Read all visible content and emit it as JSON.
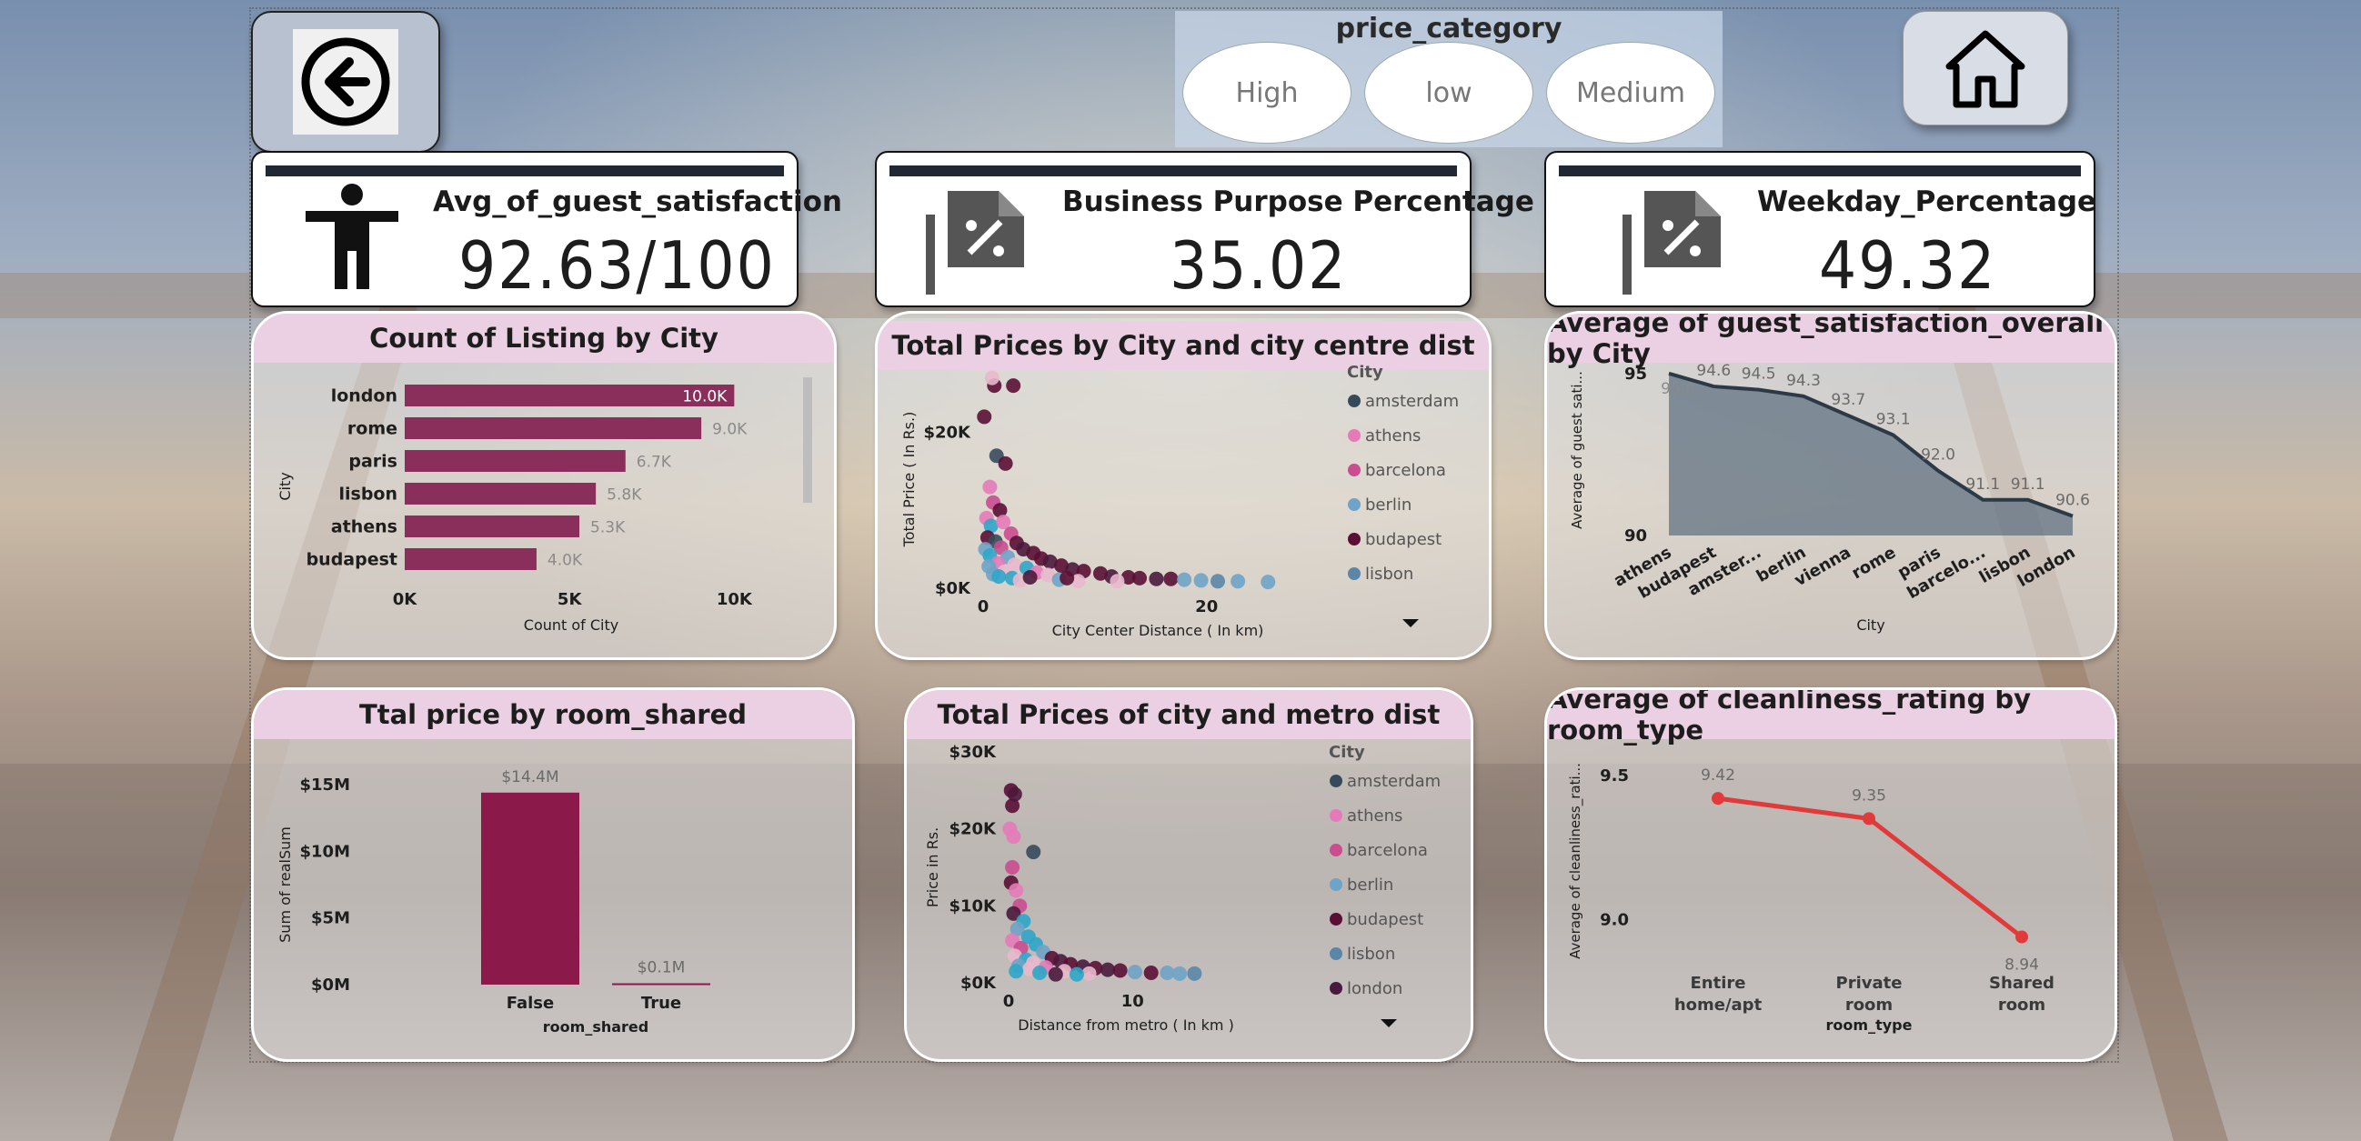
{
  "nav": {
    "back_icon": "arrow-left-circle-icon",
    "home_icon": "home-icon"
  },
  "slicer": {
    "title": "price_category",
    "options": [
      "High",
      "low",
      "Medium"
    ]
  },
  "kpis": [
    {
      "title": "Avg_of_guest_satisfaction",
      "value": "92.63/100",
      "icon": "person-icon"
    },
    {
      "title": "Business Purpose Percentage",
      "value": "35.02",
      "icon": "percent-document-icon"
    },
    {
      "title": "Weekday_Percentage",
      "value": "49.32",
      "icon": "percent-document-icon"
    }
  ],
  "colors": {
    "bar": "#8a2f5b",
    "bar_dark": "#8b1a4a",
    "line_red": "#e03a3a",
    "area": "#5d6f80",
    "amsterdam": "#374a5c",
    "athens": "#e57ab8",
    "barcelona": "#c94d8f",
    "berlin": "#6fa3c7",
    "budapest": "#5a1035",
    "lisbon": "#5b86a8",
    "london": "#4a1a3d",
    "paris": "#e8b9cc",
    "rome": "#2ea6c8"
  },
  "chart_data": [
    {
      "type": "bar",
      "title": "Count of Listing by City",
      "orientation": "horizontal",
      "categories": [
        "london",
        "rome",
        "paris",
        "lisbon",
        "athens",
        "budapest"
      ],
      "values": [
        10000,
        9000,
        6700,
        5800,
        5300,
        4000
      ],
      "labels": [
        "10.0K",
        "9.0K",
        "6.7K",
        "5.8K",
        "5.3K",
        "4.0K"
      ],
      "xlabel": "Count of City",
      "ylabel": "City",
      "xticks": [
        "0K",
        "5K",
        "10K"
      ],
      "xlim": [
        0,
        10000
      ]
    },
    {
      "type": "scatter",
      "title": "Total Prices by City and city centre dist",
      "xlabel": "City Center Distance ( In km)",
      "ylabel": "Total Price ( In Rs.)",
      "xticks": [
        "0",
        "20"
      ],
      "yticks": [
        "$0K",
        "$20K"
      ],
      "xlim": [
        0,
        28
      ],
      "ylim": [
        0,
        28000
      ],
      "legend_title": "City",
      "legend": [
        "amsterdam",
        "athens",
        "barcelona",
        "berlin",
        "budapest",
        "lisbon"
      ],
      "points": [
        {
          "x": 1.0,
          "y": 26000,
          "c": "budapest"
        },
        {
          "x": 2.7,
          "y": 26000,
          "c": "budapest"
        },
        {
          "x": 0.8,
          "y": 27000,
          "c": "paris"
        },
        {
          "x": 0.1,
          "y": 22000,
          "c": "budapest"
        },
        {
          "x": 1.2,
          "y": 17000,
          "c": "amsterdam"
        },
        {
          "x": 2.0,
          "y": 16000,
          "c": "budapest"
        },
        {
          "x": 0.6,
          "y": 13000,
          "c": "athens"
        },
        {
          "x": 0.9,
          "y": 11000,
          "c": "barcelona"
        },
        {
          "x": 1.5,
          "y": 10000,
          "c": "budapest"
        },
        {
          "x": 0.3,
          "y": 9000,
          "c": "athens"
        },
        {
          "x": 0.7,
          "y": 8000,
          "c": "rome"
        },
        {
          "x": 1.8,
          "y": 8500,
          "c": "athens"
        },
        {
          "x": 2.5,
          "y": 7000,
          "c": "barcelona"
        },
        {
          "x": 0.4,
          "y": 6500,
          "c": "budapest"
        },
        {
          "x": 1.1,
          "y": 6000,
          "c": "amsterdam"
        },
        {
          "x": 3.0,
          "y": 5800,
          "c": "budapest"
        },
        {
          "x": 0.2,
          "y": 5000,
          "c": "berlin"
        },
        {
          "x": 1.6,
          "y": 5200,
          "c": "barcelona"
        },
        {
          "x": 3.6,
          "y": 5000,
          "c": "london"
        },
        {
          "x": 4.5,
          "y": 4500,
          "c": "budapest"
        },
        {
          "x": 0.6,
          "y": 4200,
          "c": "rome"
        },
        {
          "x": 2.2,
          "y": 4000,
          "c": "berlin"
        },
        {
          "x": 5.2,
          "y": 3800,
          "c": "budapest"
        },
        {
          "x": 6.0,
          "y": 3400,
          "c": "london"
        },
        {
          "x": 1.3,
          "y": 3200,
          "c": "athens"
        },
        {
          "x": 2.8,
          "y": 3000,
          "c": "paris"
        },
        {
          "x": 7.0,
          "y": 2900,
          "c": "budapest"
        },
        {
          "x": 0.5,
          "y": 2800,
          "c": "berlin"
        },
        {
          "x": 3.9,
          "y": 2600,
          "c": "rome"
        },
        {
          "x": 8.0,
          "y": 2400,
          "c": "london"
        },
        {
          "x": 9.0,
          "y": 2200,
          "c": "budapest"
        },
        {
          "x": 1.9,
          "y": 2100,
          "c": "paris"
        },
        {
          "x": 4.8,
          "y": 2000,
          "c": "athens"
        },
        {
          "x": 10.5,
          "y": 1900,
          "c": "budapest"
        },
        {
          "x": 0.9,
          "y": 1800,
          "c": "berlin"
        },
        {
          "x": 5.8,
          "y": 1700,
          "c": "paris"
        },
        {
          "x": 11.5,
          "y": 1500,
          "c": "london"
        },
        {
          "x": 13.0,
          "y": 1400,
          "c": "budapest"
        },
        {
          "x": 2.6,
          "y": 1300,
          "c": "rome"
        },
        {
          "x": 14.0,
          "y": 1300,
          "c": "budapest"
        },
        {
          "x": 15.5,
          "y": 1200,
          "c": "london"
        },
        {
          "x": 16.8,
          "y": 1200,
          "c": "budapest"
        },
        {
          "x": 6.8,
          "y": 1100,
          "c": "berlin"
        },
        {
          "x": 18.0,
          "y": 1100,
          "c": "berlin"
        },
        {
          "x": 19.5,
          "y": 1000,
          "c": "berlin"
        },
        {
          "x": 21.0,
          "y": 900,
          "c": "lisbon"
        },
        {
          "x": 22.8,
          "y": 900,
          "c": "berlin"
        },
        {
          "x": 25.5,
          "y": 800,
          "c": "berlin"
        },
        {
          "x": 3.3,
          "y": 1000,
          "c": "paris"
        },
        {
          "x": 8.5,
          "y": 900,
          "c": "paris"
        },
        {
          "x": 12.0,
          "y": 900,
          "c": "paris"
        },
        {
          "x": 1.4,
          "y": 1500,
          "c": "rome"
        },
        {
          "x": 4.2,
          "y": 1400,
          "c": "london"
        },
        {
          "x": 7.5,
          "y": 1300,
          "c": "budapest"
        }
      ]
    },
    {
      "type": "area",
      "title": "Average of guest_satisfaction_overall by City",
      "categories": [
        "athens",
        "budapest",
        "amster...",
        "berlin",
        "vienna",
        "rome",
        "paris",
        "barcelo...",
        "lisbon",
        "london"
      ],
      "values": [
        95.0,
        94.6,
        94.5,
        94.3,
        93.7,
        93.1,
        92.0,
        91.1,
        91.1,
        90.6
      ],
      "labels": [
        "95.0",
        "94.6",
        "94.5",
        "94.3",
        "93.7",
        "93.1",
        "92.0",
        "91.1",
        "91.1",
        "90.6"
      ],
      "xlabel": "City",
      "ylabel": "Average of guest sati...",
      "yticks": [
        "90",
        "95"
      ],
      "ylim": [
        90,
        95.5
      ]
    },
    {
      "type": "bar",
      "title": "Ttal price by room_shared",
      "categories": [
        "False",
        "True"
      ],
      "values": [
        14.4,
        0.1
      ],
      "labels": [
        "$14.4M",
        "$0.1M"
      ],
      "xlabel": "room_shared",
      "ylabel": "Sum of realSum",
      "yticks": [
        "$0M",
        "$5M",
        "$10M",
        "$15M"
      ],
      "ylim": [
        0,
        15
      ]
    },
    {
      "type": "scatter",
      "title": "Total Prices of city and metro dist",
      "xlabel": "Distance from metro ( In km )",
      "ylabel": "Price in Rs.",
      "xticks": [
        "0",
        "10"
      ],
      "yticks": [
        "$0K",
        "$10K",
        "$20K",
        "$30K"
      ],
      "xlim": [
        0,
        16
      ],
      "ylim": [
        0,
        30000
      ],
      "legend_title": "City",
      "legend": [
        "amsterdam",
        "athens",
        "barcelona",
        "berlin",
        "budapest",
        "lisbon",
        "london"
      ],
      "points": [
        {
          "x": 0.2,
          "y": 25000,
          "c": "budapest"
        },
        {
          "x": 0.5,
          "y": 24500,
          "c": "london"
        },
        {
          "x": 0.3,
          "y": 23000,
          "c": "budapest"
        },
        {
          "x": 0.1,
          "y": 20000,
          "c": "athens"
        },
        {
          "x": 0.4,
          "y": 19000,
          "c": "athens"
        },
        {
          "x": 2.0,
          "y": 17000,
          "c": "amsterdam"
        },
        {
          "x": 0.3,
          "y": 15000,
          "c": "barcelona"
        },
        {
          "x": 0.2,
          "y": 13000,
          "c": "budapest"
        },
        {
          "x": 0.6,
          "y": 12000,
          "c": "athens"
        },
        {
          "x": 0.9,
          "y": 10000,
          "c": "barcelona"
        },
        {
          "x": 0.4,
          "y": 9000,
          "c": "london"
        },
        {
          "x": 1.2,
          "y": 8000,
          "c": "rome"
        },
        {
          "x": 0.7,
          "y": 7000,
          "c": "berlin"
        },
        {
          "x": 1.6,
          "y": 6000,
          "c": "rome"
        },
        {
          "x": 0.3,
          "y": 5500,
          "c": "athens"
        },
        {
          "x": 2.2,
          "y": 5000,
          "c": "rome"
        },
        {
          "x": 1.0,
          "y": 4500,
          "c": "barcelona"
        },
        {
          "x": 2.8,
          "y": 4000,
          "c": "berlin"
        },
        {
          "x": 0.5,
          "y": 3500,
          "c": "paris"
        },
        {
          "x": 3.5,
          "y": 3200,
          "c": "budapest"
        },
        {
          "x": 1.4,
          "y": 3000,
          "c": "rome"
        },
        {
          "x": 4.2,
          "y": 2800,
          "c": "london"
        },
        {
          "x": 2.0,
          "y": 2600,
          "c": "paris"
        },
        {
          "x": 5.0,
          "y": 2400,
          "c": "budapest"
        },
        {
          "x": 0.8,
          "y": 2200,
          "c": "berlin"
        },
        {
          "x": 6.0,
          "y": 2100,
          "c": "london"
        },
        {
          "x": 3.0,
          "y": 2000,
          "c": "athens"
        },
        {
          "x": 7.0,
          "y": 1900,
          "c": "budapest"
        },
        {
          "x": 1.7,
          "y": 1800,
          "c": "paris"
        },
        {
          "x": 8.0,
          "y": 1700,
          "c": "london"
        },
        {
          "x": 9.0,
          "y": 1600,
          "c": "budapest"
        },
        {
          "x": 4.5,
          "y": 1500,
          "c": "paris"
        },
        {
          "x": 10.2,
          "y": 1400,
          "c": "berlin"
        },
        {
          "x": 11.5,
          "y": 1300,
          "c": "budapest"
        },
        {
          "x": 12.8,
          "y": 1300,
          "c": "berlin"
        },
        {
          "x": 13.8,
          "y": 1200,
          "c": "berlin"
        },
        {
          "x": 15.0,
          "y": 1200,
          "c": "lisbon"
        },
        {
          "x": 2.5,
          "y": 1300,
          "c": "rome"
        },
        {
          "x": 6.5,
          "y": 1200,
          "c": "paris"
        },
        {
          "x": 3.8,
          "y": 1100,
          "c": "london"
        },
        {
          "x": 0.6,
          "y": 1500,
          "c": "rome"
        },
        {
          "x": 5.5,
          "y": 1100,
          "c": "rome"
        }
      ]
    },
    {
      "type": "line",
      "title": "Average of cleanliness_rating by room_type",
      "categories": [
        "Entire home/apt",
        "Private room",
        "Shared room"
      ],
      "values": [
        9.42,
        9.35,
        8.94
      ],
      "labels": [
        "9.42",
        "9.35",
        "8.94"
      ],
      "xlabel": "room_type",
      "ylabel": "Average of cleanliness_rati...",
      "yticks": [
        "9.0",
        "9.5"
      ],
      "ylim": [
        8.8,
        9.6
      ]
    }
  ]
}
